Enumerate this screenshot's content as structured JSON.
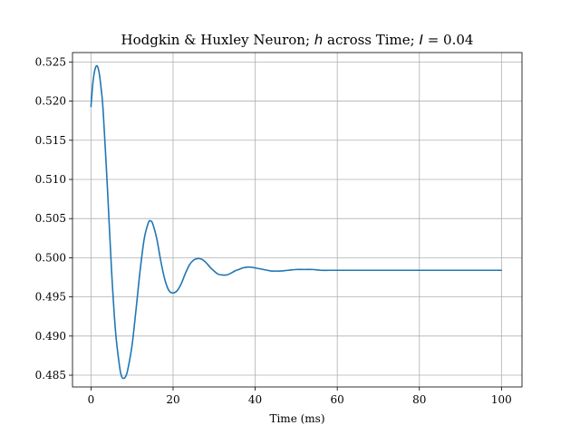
{
  "chart_data": {
    "type": "line",
    "title": {
      "prefix": "Hodgkin & Huxley Neuron; ",
      "var": "h",
      "middle": " across Time; ",
      "param": "I",
      "suffix": " = 0.04"
    },
    "xlabel": "Time (ms)",
    "ylabel": "",
    "xlim": [
      -4.5,
      105
    ],
    "ylim": [
      0.4835,
      0.5262
    ],
    "xticks": [
      0,
      20,
      40,
      60,
      80,
      100
    ],
    "xtick_labels": [
      "0",
      "20",
      "40",
      "60",
      "80",
      "100"
    ],
    "yticks": [
      0.485,
      0.49,
      0.495,
      0.5,
      0.505,
      0.51,
      0.515,
      0.52,
      0.525
    ],
    "ytick_labels": [
      "0.485",
      "0.490",
      "0.495",
      "0.500",
      "0.505",
      "0.510",
      "0.515",
      "0.520",
      "0.525"
    ],
    "grid": true,
    "legend": "none",
    "series": [
      {
        "color": "#1f77b4",
        "x": [
          0,
          0.5,
          1,
          1.5,
          2,
          2.5,
          3,
          4,
          5,
          6,
          7,
          7.5,
          8,
          8.5,
          9,
          10,
          11,
          12,
          13,
          14,
          14.5,
          15,
          16,
          17,
          18,
          19,
          20,
          21,
          22,
          23,
          24,
          25,
          26,
          27,
          28,
          29,
          30,
          31,
          32,
          33,
          34,
          35,
          36,
          37,
          38,
          39,
          40,
          41,
          42,
          43,
          44,
          45,
          46,
          48,
          50,
          52,
          54,
          56,
          58,
          60,
          65,
          70,
          75,
          80,
          85,
          90,
          95,
          100
        ],
        "y": [
          0.5193,
          0.5225,
          0.5241,
          0.5245,
          0.5236,
          0.5215,
          0.5185,
          0.509,
          0.4985,
          0.4905,
          0.486,
          0.4848,
          0.4846,
          0.4849,
          0.4858,
          0.4888,
          0.4935,
          0.4985,
          0.5025,
          0.5045,
          0.5047,
          0.5044,
          0.5025,
          0.4996,
          0.4972,
          0.4958,
          0.4955,
          0.4958,
          0.4967,
          0.498,
          0.4991,
          0.4997,
          0.4999,
          0.4998,
          0.4994,
          0.4988,
          0.4983,
          0.4979,
          0.4978,
          0.4978,
          0.498,
          0.4983,
          0.4985,
          0.4987,
          0.4988,
          0.4988,
          0.4987,
          0.4986,
          0.4985,
          0.4984,
          0.4983,
          0.4983,
          0.4983,
          0.4984,
          0.4985,
          0.4985,
          0.4985,
          0.4984,
          0.4984,
          0.4984,
          0.4984,
          0.4984,
          0.4984,
          0.4984,
          0.4984,
          0.4984,
          0.4984,
          0.4984
        ]
      }
    ]
  }
}
